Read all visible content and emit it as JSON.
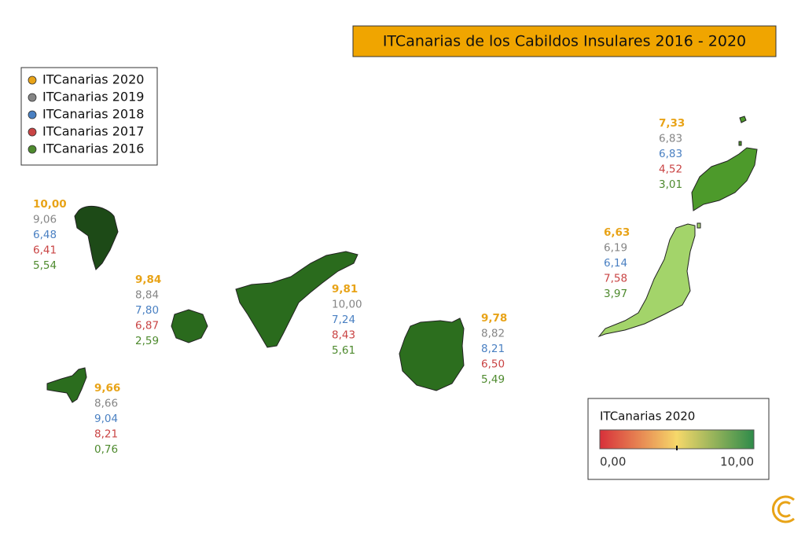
{
  "title": "ITCanarias de los Cabildos Insulares 2016 - 2020",
  "legend": [
    {
      "label": "ITCanarias 2020",
      "color": "#e8a317"
    },
    {
      "label": "ITCanarias 2019",
      "color": "#858585"
    },
    {
      "label": "ITCanarias 2018",
      "color": "#4a80c2"
    },
    {
      "label": "ITCanarias 2017",
      "color": "#c94444"
    },
    {
      "label": "ITCanarias 2016",
      "color": "#4e8a2e"
    }
  ],
  "islands": [
    {
      "fill": "#1d4a17",
      "values": [
        "10,00",
        "9,06",
        "6,48",
        "6,41",
        "5,54"
      ]
    },
    {
      "fill": "#2a6a1d",
      "values": [
        "9,84",
        "8,84",
        "7,80",
        "6,87",
        "2,59"
      ]
    },
    {
      "fill": "#2b6d1e",
      "values": [
        "9,66",
        "8,66",
        "9,04",
        "8,21",
        "0,76"
      ]
    },
    {
      "fill": "#2a6b1d",
      "values": [
        "9,81",
        "10,00",
        "7,24",
        "8,43",
        "5,61"
      ]
    },
    {
      "fill": "#2c6e1e",
      "values": [
        "9,78",
        "8,82",
        "8,21",
        "6,50",
        "5,49"
      ]
    },
    {
      "fill": "#a3d46a",
      "values": [
        "6,63",
        "6,19",
        "6,14",
        "7,58",
        "3,97"
      ]
    },
    {
      "fill": "#4d9a2b",
      "values": [
        "7,33",
        "6,83",
        "6,83",
        "4,52",
        "3,01"
      ]
    }
  ],
  "colorbar": {
    "title": "ITCanarias 2020",
    "min_label": "0,00",
    "max_label": "10,00",
    "colors": [
      "#d7303a",
      "#f6d86a",
      "#2e8b4a"
    ]
  }
}
